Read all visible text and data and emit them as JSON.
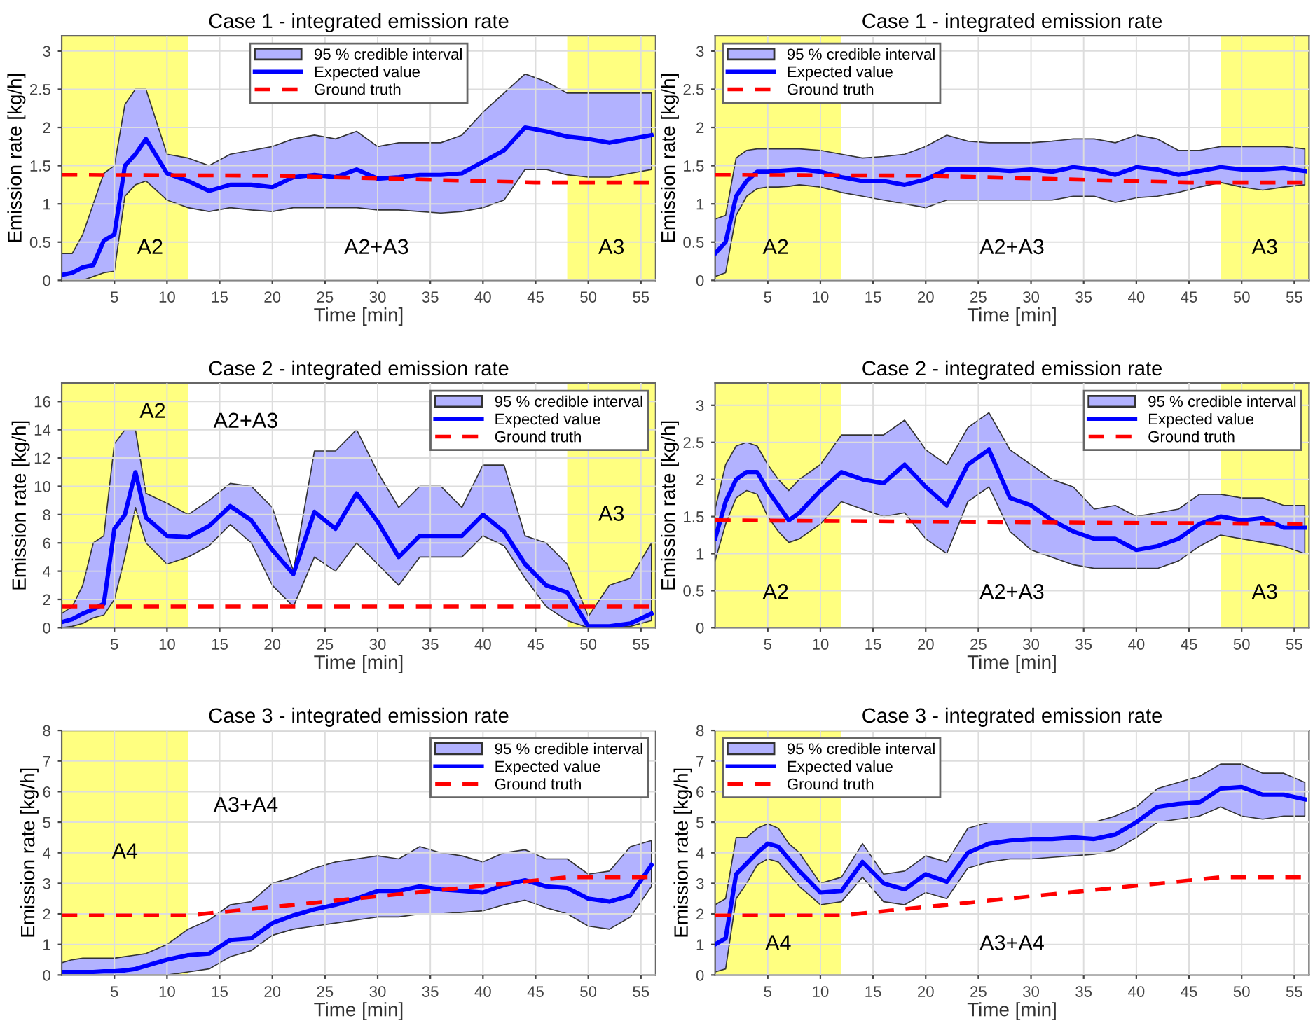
{
  "chart_data": [
    {
      "type": "line",
      "title": "Case 1 - integrated emission rate",
      "xlabel": "Time [min]",
      "ylabel": "Emission rate [kg/h]",
      "xlim": [
        0,
        56.4
      ],
      "xticks": [
        5,
        10,
        15,
        20,
        25,
        30,
        35,
        40,
        45,
        50,
        55
      ],
      "ylim": [
        0,
        3.2
      ],
      "yticks": [
        0,
        0.5,
        1,
        1.5,
        2,
        2.5,
        3
      ],
      "grid": true,
      "legend": "top",
      "x": [
        0,
        1,
        2,
        3,
        4,
        5,
        6,
        7,
        8,
        10,
        12,
        14,
        16,
        18,
        20,
        22,
        24,
        26,
        28,
        30,
        32,
        34,
        36,
        38,
        40,
        42,
        44,
        46,
        48,
        50,
        52,
        54,
        56
      ],
      "series": [
        {
          "name": "Expected value",
          "type": "line",
          "color": "#0000ff",
          "values": [
            0.07,
            0.1,
            0.17,
            0.2,
            0.52,
            0.6,
            1.5,
            1.65,
            1.85,
            1.4,
            1.3,
            1.17,
            1.25,
            1.25,
            1.22,
            1.35,
            1.38,
            1.35,
            1.45,
            1.33,
            1.35,
            1.38,
            1.38,
            1.4,
            1.55,
            1.7,
            2.0,
            1.95,
            1.88,
            1.85,
            1.8,
            1.85,
            1.9
          ],
          "lower": [
            0,
            0,
            0,
            0.05,
            0.1,
            0.12,
            1.1,
            1.25,
            1.3,
            1.05,
            0.95,
            0.9,
            0.95,
            0.92,
            0.9,
            0.95,
            0.95,
            0.95,
            0.95,
            0.92,
            0.92,
            0.9,
            0.88,
            0.9,
            0.95,
            1.05,
            1.45,
            1.45,
            1.38,
            1.35,
            1.35,
            1.4,
            1.45
          ],
          "upper": [
            0.35,
            0.35,
            0.6,
            1.0,
            1.4,
            1.5,
            2.3,
            2.5,
            2.5,
            1.65,
            1.6,
            1.5,
            1.65,
            1.7,
            1.75,
            1.85,
            1.9,
            1.85,
            1.95,
            1.75,
            1.8,
            1.8,
            1.8,
            1.9,
            2.2,
            2.45,
            2.7,
            2.6,
            2.45,
            2.45,
            2.45,
            2.45,
            2.45
          ]
        },
        {
          "name": "Ground truth",
          "type": "line",
          "color": "#ff0000",
          "line_style": "dashed",
          "x": [
            0,
            20,
            45,
            56.4
          ],
          "values": [
            1.38,
            1.37,
            1.28,
            1.28
          ]
        }
      ],
      "bands": [
        {
          "axis": "x",
          "from": 0,
          "to": 12,
          "color": "#ffff80",
          "label": "A2"
        },
        {
          "axis": "x",
          "from": 48,
          "to": 56.4,
          "color": "#ffff80",
          "label": "A3"
        }
      ],
      "annotations": [
        "95 % credible interval",
        "A2+A3"
      ]
    },
    {
      "type": "line",
      "title": "Case 1 - integrated emission rate",
      "xlabel": "Time [min]",
      "ylabel": "Emission rate [kg/h]",
      "xlim": [
        0,
        56.4
      ],
      "xticks": [
        5,
        10,
        15,
        20,
        25,
        30,
        35,
        40,
        45,
        50,
        55
      ],
      "ylim": [
        0,
        3.2
      ],
      "yticks": [
        0,
        0.5,
        1,
        1.5,
        2,
        2.5,
        3
      ],
      "grid": true,
      "legend": "top left",
      "x": [
        0,
        1,
        2,
        3,
        4,
        5,
        6,
        7,
        8,
        10,
        12,
        14,
        16,
        18,
        20,
        22,
        24,
        26,
        28,
        30,
        32,
        34,
        36,
        38,
        40,
        42,
        44,
        46,
        48,
        50,
        52,
        54,
        56
      ],
      "series": [
        {
          "name": "Expected value",
          "type": "line",
          "color": "#0000ff",
          "values": [
            0.35,
            0.5,
            1.1,
            1.3,
            1.42,
            1.42,
            1.43,
            1.44,
            1.45,
            1.42,
            1.35,
            1.3,
            1.3,
            1.25,
            1.32,
            1.45,
            1.45,
            1.45,
            1.43,
            1.45,
            1.42,
            1.48,
            1.45,
            1.38,
            1.48,
            1.45,
            1.38,
            1.43,
            1.48,
            1.45,
            1.45,
            1.47,
            1.43
          ],
          "lower": [
            0.05,
            0.1,
            0.85,
            1.1,
            1.2,
            1.22,
            1.22,
            1.23,
            1.25,
            1.22,
            1.15,
            1.1,
            1.05,
            1.0,
            0.95,
            1.05,
            1.05,
            1.05,
            1.05,
            1.05,
            1.05,
            1.1,
            1.1,
            1.02,
            1.08,
            1.1,
            1.15,
            1.22,
            1.28,
            1.22,
            1.18,
            1.22,
            1.25
          ],
          "upper": [
            0.8,
            0.85,
            1.6,
            1.7,
            1.72,
            1.72,
            1.72,
            1.72,
            1.72,
            1.7,
            1.65,
            1.6,
            1.62,
            1.65,
            1.75,
            1.9,
            1.82,
            1.8,
            1.8,
            1.8,
            1.82,
            1.85,
            1.85,
            1.8,
            1.9,
            1.85,
            1.7,
            1.7,
            1.75,
            1.75,
            1.75,
            1.75,
            1.72
          ]
        },
        {
          "name": "Ground truth",
          "type": "line",
          "color": "#ff0000",
          "line_style": "dashed",
          "x": [
            0,
            20,
            45,
            56.4
          ],
          "values": [
            1.38,
            1.37,
            1.28,
            1.28
          ]
        }
      ],
      "bands": [
        {
          "axis": "x",
          "from": 0,
          "to": 12,
          "color": "#ffff80",
          "label": "A2"
        },
        {
          "axis": "x",
          "from": 48,
          "to": 56.4,
          "color": "#ffff80",
          "label": "A3"
        }
      ],
      "annotations": [
        "95 % credible interval",
        "A2+A3"
      ]
    },
    {
      "type": "line",
      "title": "Case 2 - integrated emission rate",
      "xlabel": "Time [min]",
      "ylabel": "Emission rate [kg/h]",
      "xlim": [
        0,
        56.4
      ],
      "xticks": [
        5,
        10,
        15,
        20,
        25,
        30,
        35,
        40,
        45,
        50,
        55
      ],
      "ylim": [
        0,
        17.3
      ],
      "yticks": [
        0,
        2,
        4,
        6,
        8,
        10,
        12,
        14,
        16
      ],
      "grid": true,
      "legend": "top right",
      "x": [
        0,
        1,
        2,
        3,
        4,
        5,
        6,
        7,
        8,
        10,
        12,
        14,
        16,
        18,
        20,
        22,
        24,
        26,
        28,
        30,
        32,
        34,
        36,
        38,
        40,
        42,
        44,
        46,
        48,
        50,
        52,
        54,
        56
      ],
      "series": [
        {
          "name": "Expected value",
          "type": "line",
          "color": "#0000ff",
          "values": [
            0.4,
            0.6,
            1.0,
            1.3,
            1.7,
            7.0,
            8.0,
            11.0,
            7.8,
            6.5,
            6.4,
            7.2,
            8.6,
            7.6,
            5.5,
            3.8,
            8.2,
            7.0,
            9.5,
            7.5,
            5.0,
            6.5,
            6.5,
            6.5,
            8.0,
            6.8,
            4.5,
            3.0,
            2.5,
            0.1,
            0.1,
            0.3,
            1.0
          ],
          "lower": [
            0,
            0.1,
            0.3,
            0.7,
            0.9,
            2.0,
            5.0,
            8.5,
            6.0,
            4.5,
            5.0,
            5.8,
            7.3,
            6.0,
            3.0,
            1.5,
            5.0,
            4.0,
            6.0,
            4.5,
            3.0,
            5.0,
            5.0,
            5.0,
            6.5,
            5.8,
            3.5,
            1.5,
            0.5,
            0,
            0,
            0.1,
            0.5
          ],
          "upper": [
            1.0,
            1.5,
            3.0,
            6.0,
            6.5,
            13,
            14,
            14,
            9.5,
            8.8,
            8.0,
            9.0,
            10.2,
            10.0,
            8.5,
            4.0,
            12.5,
            12.5,
            14,
            11.0,
            8.5,
            10.0,
            10.0,
            8.5,
            11.5,
            11.5,
            6.5,
            6.0,
            4.5,
            0.8,
            3.0,
            3.5,
            6.0
          ]
        },
        {
          "name": "Ground truth",
          "type": "line",
          "color": "#ff0000",
          "line_style": "dashed",
          "x": [
            0,
            56.4
          ],
          "values": [
            1.5,
            1.5
          ]
        }
      ],
      "bands": [
        {
          "axis": "x",
          "from": 0,
          "to": 12,
          "color": "#ffff80",
          "label": "A2"
        },
        {
          "axis": "x",
          "from": 48,
          "to": 56.4,
          "color": "#ffff80",
          "label": "A3"
        }
      ],
      "annotations": [
        "95 % credible interval",
        "A2+A3"
      ]
    },
    {
      "type": "line",
      "title": "Case 2 - integrated emission rate",
      "xlabel": "Time [min]",
      "ylabel": "Emission rate [kg/h]",
      "xlim": [
        0,
        56.4
      ],
      "xticks": [
        5,
        10,
        15,
        20,
        25,
        30,
        35,
        40,
        45,
        50,
        55
      ],
      "ylim": [
        0,
        3.3
      ],
      "yticks": [
        0,
        0.5,
        1,
        1.5,
        2,
        2.5,
        3
      ],
      "grid": true,
      "legend": "top right",
      "x": [
        0,
        1,
        2,
        3,
        4,
        5,
        6,
        7,
        8,
        10,
        12,
        14,
        16,
        18,
        20,
        22,
        24,
        26,
        28,
        30,
        32,
        34,
        36,
        38,
        40,
        42,
        44,
        46,
        48,
        50,
        52,
        54,
        56
      ],
      "series": [
        {
          "name": "Expected value",
          "type": "line",
          "color": "#0000ff",
          "values": [
            1.2,
            1.7,
            2.0,
            2.1,
            2.1,
            1.85,
            1.65,
            1.45,
            1.55,
            1.85,
            2.1,
            2.0,
            1.95,
            2.2,
            1.9,
            1.65,
            2.2,
            2.4,
            1.75,
            1.65,
            1.45,
            1.3,
            1.2,
            1.2,
            1.05,
            1.1,
            1.2,
            1.4,
            1.5,
            1.45,
            1.48,
            1.35,
            1.35
          ],
          "lower": [
            0.9,
            1.4,
            1.75,
            1.85,
            1.8,
            1.5,
            1.3,
            1.15,
            1.2,
            1.4,
            1.7,
            1.6,
            1.5,
            1.55,
            1.2,
            1.0,
            1.7,
            1.9,
            1.3,
            1.05,
            0.95,
            0.85,
            0.8,
            0.8,
            0.8,
            0.8,
            0.9,
            1.1,
            1.25,
            1.2,
            1.15,
            1.1,
            1.0
          ],
          "upper": [
            1.6,
            2.2,
            2.45,
            2.5,
            2.45,
            2.2,
            2.0,
            1.85,
            2.0,
            2.2,
            2.6,
            2.6,
            2.6,
            2.8,
            2.4,
            2.2,
            2.7,
            2.9,
            2.4,
            2.2,
            2.0,
            1.9,
            1.6,
            1.65,
            1.5,
            1.55,
            1.6,
            1.8,
            1.8,
            1.75,
            1.75,
            1.65,
            1.65
          ]
        },
        {
          "name": "Ground truth",
          "type": "line",
          "color": "#ff0000",
          "line_style": "dashed",
          "x": [
            0,
            56.4
          ],
          "values": [
            1.45,
            1.4
          ]
        }
      ],
      "bands": [
        {
          "axis": "x",
          "from": 0,
          "to": 12,
          "color": "#ffff80",
          "label": "A2"
        },
        {
          "axis": "x",
          "from": 48,
          "to": 56.4,
          "color": "#ffff80",
          "label": "A3"
        }
      ],
      "annotations": [
        "95 % credible interval",
        "A2+A3"
      ]
    },
    {
      "type": "line",
      "title": "Case 3 - integrated emission rate",
      "xlabel": "Time [min]",
      "ylabel": "Emission rate [kg/h]",
      "xlim": [
        0,
        56.4
      ],
      "xticks": [
        5,
        10,
        15,
        20,
        25,
        30,
        35,
        40,
        45,
        50,
        55
      ],
      "ylim": [
        0,
        8
      ],
      "yticks": [
        0,
        1,
        2,
        3,
        4,
        5,
        6,
        7,
        8
      ],
      "grid": true,
      "legend": "top right",
      "x": [
        0,
        1,
        2,
        3,
        4,
        5,
        6,
        7,
        8,
        10,
        12,
        14,
        16,
        18,
        20,
        22,
        24,
        26,
        28,
        30,
        32,
        34,
        36,
        38,
        40,
        42,
        44,
        46,
        48,
        50,
        52,
        54,
        56
      ],
      "series": [
        {
          "name": "Expected value",
          "type": "line",
          "color": "#0000ff",
          "values": [
            0.1,
            0.1,
            0.1,
            0.1,
            0.12,
            0.12,
            0.15,
            0.2,
            0.3,
            0.5,
            0.65,
            0.7,
            1.15,
            1.2,
            1.7,
            1.95,
            2.15,
            2.3,
            2.5,
            2.75,
            2.75,
            2.9,
            2.8,
            2.75,
            2.7,
            2.95,
            3.1,
            2.9,
            2.85,
            2.5,
            2.4,
            2.6,
            3.6
          ],
          "lower": [
            0,
            0,
            0,
            0,
            0,
            0,
            0,
            0,
            0,
            0,
            0.1,
            0.2,
            0.6,
            0.8,
            1.3,
            1.5,
            1.6,
            1.7,
            1.8,
            1.9,
            1.9,
            2.0,
            2.0,
            2.05,
            2.1,
            2.3,
            2.45,
            2.2,
            2.0,
            1.6,
            1.5,
            1.9,
            2.9
          ],
          "upper": [
            0.4,
            0.5,
            0.55,
            0.55,
            0.55,
            0.55,
            0.6,
            0.65,
            0.7,
            1.0,
            1.5,
            1.8,
            2.3,
            2.4,
            3.0,
            3.2,
            3.5,
            3.7,
            3.8,
            3.9,
            3.8,
            4.2,
            4.0,
            3.9,
            3.7,
            4.0,
            4.1,
            3.8,
            3.8,
            3.3,
            3.4,
            4.2,
            4.4
          ]
        },
        {
          "name": "Ground truth",
          "type": "line",
          "color": "#ff0000",
          "line_style": "dashed",
          "x": [
            0,
            12,
            48,
            56.4
          ],
          "values": [
            1.95,
            1.95,
            3.2,
            3.2
          ]
        }
      ],
      "bands": [
        {
          "axis": "x",
          "from": 0,
          "to": 12,
          "color": "#ffff80",
          "label": "A4"
        }
      ],
      "annotations": [
        "95 % credible interval",
        "A3+A4"
      ]
    },
    {
      "type": "line",
      "title": "Case 3 - integrated emission rate",
      "xlabel": "Time [min]",
      "ylabel": "Emission rate [kg/h]",
      "xlim": [
        0,
        56.4
      ],
      "xticks": [
        5,
        10,
        15,
        20,
        25,
        30,
        35,
        40,
        45,
        50,
        55
      ],
      "ylim": [
        0,
        8
      ],
      "yticks": [
        0,
        1,
        2,
        3,
        4,
        5,
        6,
        7,
        8
      ],
      "grid": true,
      "legend": "top left",
      "x": [
        0,
        1,
        2,
        3,
        4,
        5,
        6,
        7,
        8,
        10,
        12,
        14,
        16,
        18,
        20,
        22,
        24,
        26,
        28,
        30,
        32,
        34,
        36,
        38,
        40,
        42,
        44,
        46,
        48,
        50,
        52,
        54,
        56
      ],
      "series": [
        {
          "name": "Expected value",
          "type": "line",
          "color": "#0000ff",
          "values": [
            1.0,
            1.2,
            3.3,
            3.65,
            4.0,
            4.3,
            4.2,
            3.8,
            3.4,
            2.7,
            2.75,
            3.7,
            3.0,
            2.8,
            3.3,
            3.05,
            4.0,
            4.3,
            4.4,
            4.45,
            4.45,
            4.5,
            4.45,
            4.6,
            5.0,
            5.5,
            5.6,
            5.65,
            6.1,
            6.15,
            5.9,
            5.9,
            5.75
          ],
          "lower": [
            0.1,
            0.2,
            2.5,
            3.0,
            3.6,
            3.8,
            3.7,
            3.3,
            2.9,
            2.3,
            2.4,
            3.2,
            2.4,
            2.3,
            2.7,
            2.5,
            3.5,
            3.7,
            3.8,
            3.8,
            3.85,
            3.9,
            3.95,
            4.1,
            4.5,
            5.0,
            5.1,
            5.2,
            5.5,
            5.2,
            5.1,
            5.2,
            5.2
          ],
          "upper": [
            2.3,
            2.5,
            4.5,
            4.5,
            4.8,
            4.95,
            4.8,
            4.3,
            4.0,
            3.0,
            3.2,
            4.3,
            3.3,
            3.4,
            3.9,
            3.7,
            4.8,
            5.0,
            5.0,
            5.0,
            5.0,
            5.0,
            5.0,
            5.2,
            5.5,
            6.1,
            6.3,
            6.5,
            6.9,
            6.9,
            6.6,
            6.6,
            6.3
          ]
        },
        {
          "name": "Ground truth",
          "type": "line",
          "color": "#ff0000",
          "line_style": "dashed",
          "x": [
            0,
            12,
            48,
            56.4
          ],
          "values": [
            1.95,
            1.95,
            3.2,
            3.2
          ]
        }
      ],
      "bands": [
        {
          "axis": "x",
          "from": 0,
          "to": 12,
          "color": "#ffff80",
          "label": "A4"
        }
      ],
      "annotations": [
        "95 % credible interval",
        "A3+A4"
      ]
    }
  ]
}
